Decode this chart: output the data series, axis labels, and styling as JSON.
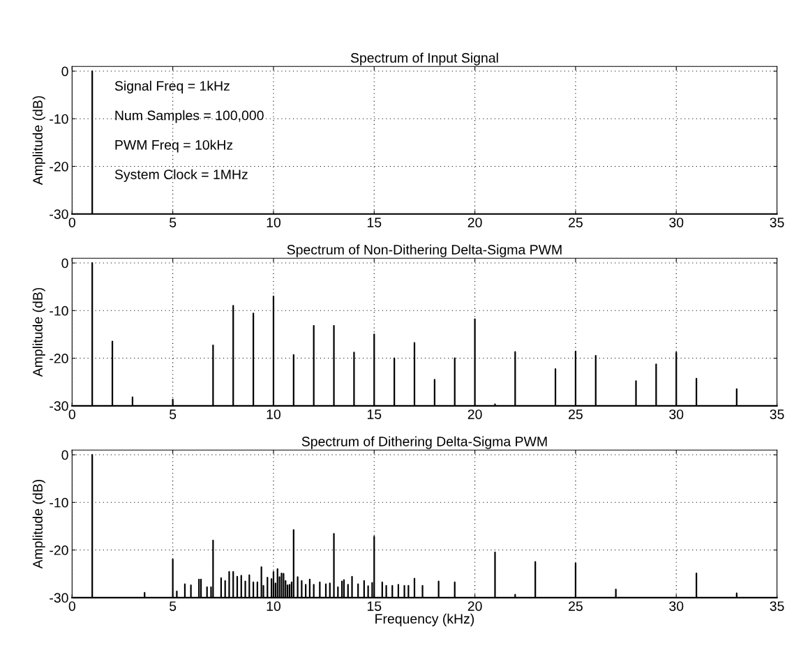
{
  "chart_data": [
    {
      "type": "line",
      "title": "Spectrum of Input Signal",
      "ylabel": "Amplitude (dB)",
      "marker": "none",
      "grid": true,
      "xlim": [
        0,
        35
      ],
      "xticks": [
        0,
        5,
        10,
        15,
        20,
        25,
        30,
        35
      ],
      "ylim": [
        -30,
        1
      ],
      "yticks": [
        -30,
        -20,
        -10,
        0
      ],
      "annotations": [
        "Signal Freq = 1kHz",
        "Num Samples = 100,000",
        "PWM Freq = 10kHz",
        "System Clock = 1MHz"
      ],
      "series": [
        {
          "color": "#000000",
          "x": [
            0,
            1,
            1,
            1,
            35
          ],
          "values": [
            -30,
            -30,
            0,
            -30,
            -30
          ]
        }
      ]
    },
    {
      "type": "line",
      "title": "Spectrum of Non-Dithering Delta-Sigma PWM",
      "ylabel": "Amplitude (dB)",
      "marker": "none",
      "grid": true,
      "xlim": [
        0,
        35
      ],
      "xticks": [
        0,
        5,
        10,
        15,
        20,
        25,
        30,
        35
      ],
      "ylim": [
        -30,
        1
      ],
      "yticks": [
        -30,
        -20,
        -10,
        0
      ],
      "series": [
        {
          "color": "#000000",
          "x": [
            0,
            1,
            1,
            1,
            2,
            2,
            2,
            3,
            3,
            3,
            5,
            5,
            5,
            7,
            7,
            7,
            8,
            8,
            8,
            9,
            9,
            9,
            10,
            10,
            10,
            11,
            11,
            11,
            12,
            12,
            12,
            13,
            13,
            13,
            14,
            14,
            14,
            15,
            15,
            15,
            16,
            16,
            16,
            17,
            17,
            17,
            18,
            18,
            18,
            19,
            19,
            19,
            20,
            20,
            20,
            21,
            21,
            21,
            22,
            22,
            22,
            24,
            24,
            24,
            25,
            25,
            25,
            26,
            26,
            26,
            28,
            28,
            28,
            29,
            29,
            29,
            30,
            30,
            30,
            31,
            31,
            31,
            33,
            33,
            33,
            35
          ],
          "values": [
            -30,
            -30,
            0,
            -30,
            -30,
            -16.5,
            -30,
            -30,
            -28.2,
            -30,
            -30,
            -28.7,
            -30,
            -30,
            -17.3,
            -30,
            -30,
            -9,
            -30,
            -30,
            -10.6,
            -30,
            -30,
            -7,
            -30,
            -30,
            -19.3,
            -30,
            -30,
            -13.2,
            -30,
            -30,
            -13.2,
            -30,
            -30,
            -18.8,
            -30,
            -30,
            -15,
            -30,
            -30,
            -20,
            -30,
            -30,
            -16.8,
            -30,
            -30,
            -24.5,
            -30,
            -30,
            -20,
            -30,
            -30,
            -11.8,
            -30,
            -30,
            -29.7,
            -30,
            -30,
            -18.7,
            -30,
            -30,
            -22.3,
            -30,
            -30,
            -18.6,
            -30,
            -30,
            -19.5,
            -30,
            -30,
            -24.8,
            -30,
            -30,
            -21.3,
            -30,
            -30,
            -18.8,
            -30,
            -30,
            -24.3,
            -30,
            -30,
            -26.5,
            -30,
            -30
          ]
        }
      ]
    },
    {
      "type": "line",
      "title": "Spectrum of Dithering Delta-Sigma PWM",
      "xlabel": "Frequency (kHz)",
      "ylabel": "Amplitude (dB)",
      "marker": "none",
      "grid": true,
      "xlim": [
        0,
        35
      ],
      "xticks": [
        0,
        5,
        10,
        15,
        20,
        25,
        30,
        35
      ],
      "ylim": [
        -30,
        1
      ],
      "yticks": [
        -30,
        -20,
        -10,
        0
      ],
      "series": [
        {
          "color": "#000000",
          "x": [
            0,
            1,
            1,
            1,
            3.6,
            3.6,
            3.6,
            5,
            5,
            5,
            5.2,
            5.2,
            5.2,
            5.6,
            5.6,
            5.6,
            5.9,
            5.9,
            5.9,
            6.3,
            6.3,
            6.3,
            6.4,
            6.4,
            6.4,
            6.7,
            6.7,
            6.7,
            6.9,
            6.9,
            6.9,
            7,
            7,
            7,
            7.4,
            7.4,
            7.4,
            7.6,
            7.6,
            7.6,
            7.8,
            7.8,
            7.8,
            8,
            8,
            8,
            8.2,
            8.2,
            8.2,
            8.4,
            8.4,
            8.4,
            8.6,
            8.6,
            8.6,
            8.8,
            8.8,
            8.8,
            9,
            9,
            9,
            9.2,
            9.2,
            9.2,
            9.4,
            9.4,
            9.4,
            9.5,
            9.5,
            9.5,
            9.7,
            9.7,
            9.7,
            9.9,
            9.9,
            9.9,
            10,
            10,
            10,
            10.1,
            10.1,
            10.1,
            10.2,
            10.2,
            10.2,
            10.3,
            10.3,
            10.3,
            10.4,
            10.4,
            10.4,
            10.5,
            10.5,
            10.5,
            10.6,
            10.6,
            10.6,
            10.7,
            10.7,
            10.7,
            10.8,
            10.8,
            10.8,
            10.9,
            10.9,
            10.9,
            11,
            11,
            11,
            11.2,
            11.2,
            11.2,
            11.4,
            11.4,
            11.4,
            11.6,
            11.6,
            11.6,
            11.8,
            11.8,
            11.8,
            12,
            12,
            12,
            12.3,
            12.3,
            12.3,
            12.6,
            12.6,
            12.6,
            12.8,
            12.8,
            12.8,
            13,
            13,
            13,
            13.2,
            13.2,
            13.2,
            13.4,
            13.4,
            13.4,
            13.5,
            13.5,
            13.5,
            13.7,
            13.7,
            13.7,
            13.9,
            13.9,
            13.9,
            14.2,
            14.2,
            14.2,
            14.5,
            14.5,
            14.5,
            14.7,
            14.7,
            14.7,
            14.9,
            14.9,
            14.9,
            15,
            15,
            15,
            15.4,
            15.4,
            15.4,
            15.6,
            15.6,
            15.6,
            15.9,
            15.9,
            15.9,
            16.2,
            16.2,
            16.2,
            16.5,
            16.5,
            16.5,
            16.7,
            16.7,
            16.7,
            17,
            17,
            17,
            17.4,
            17.4,
            17.4,
            18.2,
            18.2,
            18.2,
            19,
            19,
            19,
            21,
            21,
            21,
            22,
            22,
            22,
            23,
            23,
            23,
            25,
            25,
            25,
            27,
            27,
            27,
            31,
            31,
            31,
            33,
            33,
            33,
            35
          ],
          "values": [
            -30,
            -30,
            0,
            -30,
            -30,
            -29,
            -30,
            -30,
            -22,
            -30,
            -30,
            -28.7,
            -30,
            -30,
            -27.2,
            -30,
            -30,
            -27.4,
            -30,
            -30,
            -26.2,
            -30,
            -30,
            -26.2,
            -30,
            -30,
            -27.8,
            -30,
            -30,
            -27.8,
            -30,
            -30,
            -18,
            -30,
            -30,
            -25.9,
            -30,
            -30,
            -26.5,
            -30,
            -30,
            -24.6,
            -30,
            -30,
            -24.6,
            -30,
            -30,
            -25.6,
            -30,
            -30,
            -25.4,
            -30,
            -30,
            -26.6,
            -30,
            -30,
            -25.3,
            -30,
            -30,
            -26.8,
            -30,
            -30,
            -26.8,
            -30,
            -30,
            -23.6,
            -30,
            -30,
            -27.5,
            -30,
            -30,
            -25.8,
            -30,
            -30,
            -26.1,
            -30,
            -30,
            -24.6,
            -30,
            -30,
            -27,
            -30,
            -30,
            -24,
            -30,
            -30,
            -25.7,
            -30,
            -30,
            -24.9,
            -30,
            -30,
            -25,
            -30,
            -30,
            -26.5,
            -30,
            -30,
            -27.4,
            -30,
            -30,
            -27.3,
            -30,
            -30,
            -26.8,
            -30,
            -30,
            -15.8,
            -30,
            -30,
            -25.7,
            -30,
            -30,
            -26.5,
            -30,
            -30,
            -27.3,
            -30,
            -30,
            -26.2,
            -30,
            -30,
            -27.3,
            -30,
            -30,
            -26.8,
            -30,
            -30,
            -27.2,
            -30,
            -30,
            -27,
            -30,
            -30,
            -16.6,
            -30,
            -30,
            -27.8,
            -30,
            -30,
            -26.6,
            -30,
            -30,
            -26.3,
            -30,
            -30,
            -27.3,
            -30,
            -30,
            -25.6,
            -30,
            -30,
            -27.2,
            -30,
            -30,
            -26.5,
            -30,
            -30,
            -27.6,
            -30,
            -30,
            -26.9,
            -30,
            -30,
            -17.2,
            -30,
            -30,
            -26.8,
            -30,
            -30,
            -27.5,
            -30,
            -30,
            -27.5,
            -30,
            -30,
            -27.3,
            -30,
            -30,
            -27.5,
            -30,
            -30,
            -27.5,
            -30,
            -30,
            -26,
            -30,
            -30,
            -27.5,
            -30,
            -30,
            -26.6,
            -30,
            -30,
            -26.8,
            -30,
            -30,
            -20.5,
            -30,
            -30,
            -29.4,
            -30,
            -30,
            -22.5,
            -30,
            -30,
            -22.8,
            -30,
            -30,
            -28.3,
            -30,
            -30,
            -24.9,
            -30,
            -30,
            -29.1,
            -30,
            -30
          ]
        }
      ]
    }
  ]
}
